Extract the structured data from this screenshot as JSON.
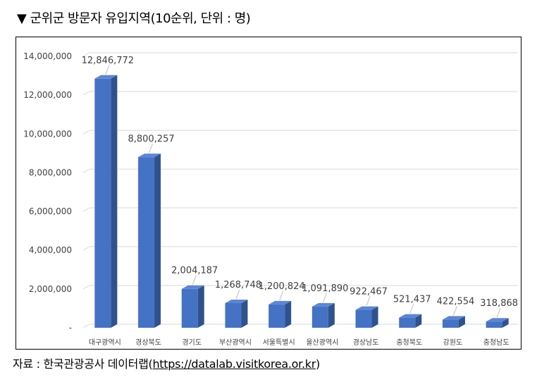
{
  "header": {
    "marker": "▼",
    "title": "군위군 방문자 유입지역(10순위, 단위 : 명)"
  },
  "source": {
    "prefix": "자료 : 한국관광공사 데이터랩",
    "open": "(",
    "url": "https://datalab.visitkorea.or.kr",
    "close": ")"
  },
  "colors": {
    "bar_front": "#4472C4",
    "bar_side": "#2F528F",
    "bar_top": "#5B86D6",
    "grid": "#D9D9D9"
  },
  "chart_data": {
    "type": "bar",
    "style": "3d-column",
    "title": "",
    "xlabel": "",
    "ylabel": "",
    "ylim": [
      0,
      14000000
    ],
    "yticks": [
      0,
      2000000,
      4000000,
      6000000,
      8000000,
      10000000,
      12000000,
      14000000
    ],
    "ytick_labels": [
      "-",
      "2,000,000",
      "4,000,000",
      "6,000,000",
      "8,000,000",
      "10,000,000",
      "12,000,000",
      "14,000,000"
    ],
    "grid": true,
    "legend": "none",
    "categories": [
      "대구광역시",
      "경상북도",
      "경기도",
      "부산광역시",
      "서울특별시",
      "울산광역시",
      "경상남도",
      "충청북도",
      "강원도",
      "충청남도"
    ],
    "values": [
      12846772,
      8800257,
      2004187,
      1268748,
      1200824,
      1091890,
      922467,
      521437,
      422554,
      318868
    ],
    "value_labels": [
      "12,846,772",
      "8,800,257",
      "2,004,187",
      "1,268,748",
      "1,200,824",
      "1,091,890",
      "922,467",
      "521,437",
      "422,554",
      "318,868"
    ]
  }
}
